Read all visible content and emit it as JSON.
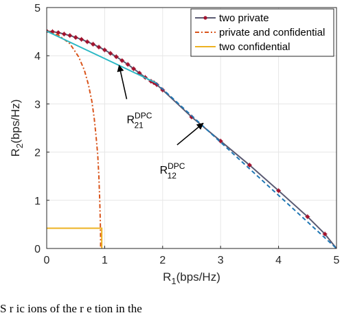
{
  "chart_data": {
    "type": "line",
    "xlabel": "R",
    "xlabel_sub": "1",
    "xlabel_unit": "(bps/Hz)",
    "ylabel": "R",
    "ylabel_sub": "2",
    "ylabel_unit": "(bps/Hz)",
    "xlim": [
      0,
      5
    ],
    "ylim": [
      0,
      5
    ],
    "xticks": [
      0,
      1,
      2,
      3,
      4,
      5
    ],
    "yticks": [
      0,
      1,
      2,
      3,
      4,
      5
    ],
    "grid": true,
    "legend_position": "top-right",
    "series": [
      {
        "name": "two private",
        "color": "#a2142f",
        "line_color": "#5a5a72",
        "style": "solid-markers",
        "x": [
          0,
          0.1,
          0.2,
          0.3,
          0.4,
          0.5,
          0.6,
          0.7,
          0.8,
          0.9,
          1.0,
          1.1,
          1.2,
          1.3,
          1.4,
          1.5,
          1.6,
          1.7,
          1.8,
          1.85,
          1.9,
          2.0,
          2.5,
          3.0,
          3.5,
          4.0,
          4.5,
          4.8,
          5.0
        ],
        "y": [
          4.51,
          4.5,
          4.48,
          4.45,
          4.42,
          4.38,
          4.34,
          4.29,
          4.24,
          4.18,
          4.12,
          4.05,
          3.98,
          3.9,
          3.82,
          3.73,
          3.64,
          3.55,
          3.47,
          3.44,
          3.4,
          3.29,
          2.73,
          2.23,
          1.73,
          1.2,
          0.66,
          0.3,
          0.0
        ]
      },
      {
        "name": "private and confidential",
        "color": "#d95319",
        "style": "dash-dot",
        "x": [
          0,
          0.2,
          0.4,
          0.55,
          0.65,
          0.72,
          0.78,
          0.82,
          0.85,
          0.88,
          0.9,
          0.915,
          0.925,
          0.93,
          0.93
        ],
        "y": [
          4.51,
          4.43,
          4.25,
          3.98,
          3.7,
          3.4,
          3.05,
          2.7,
          2.35,
          1.95,
          1.5,
          1.0,
          0.55,
          0.2,
          0
        ]
      },
      {
        "name": "two confidential",
        "color": "#edb120",
        "style": "solid",
        "x": [
          0,
          0.95,
          0.95
        ],
        "y": [
          0.42,
          0.42,
          0
        ]
      },
      {
        "name": "",
        "color": "#2ab8c4",
        "style": "solid",
        "x": [
          0,
          1.88
        ],
        "y": [
          4.51,
          3.44
        ]
      },
      {
        "name": "",
        "color": "#1f77b4",
        "style": "dashed",
        "x": [
          1.88,
          5.0
        ],
        "y": [
          3.44,
          0.0
        ]
      }
    ],
    "annotations": [
      {
        "label": "R",
        "sub": "21",
        "sup": "DPC",
        "text_x": 1.38,
        "text_y": 2.8,
        "arrow_from": [
          1.38,
          3.1
        ],
        "arrow_to": [
          1.25,
          3.8
        ]
      },
      {
        "label": "R",
        "sub": "12",
        "sup": "DPC",
        "text_x": 1.95,
        "text_y": 1.75,
        "arrow_from": [
          2.25,
          2.15
        ],
        "arrow_to": [
          2.7,
          2.6
        ]
      }
    ]
  },
  "caption": "S        r    ic      ions  of  the  r    e  tion    in  the"
}
